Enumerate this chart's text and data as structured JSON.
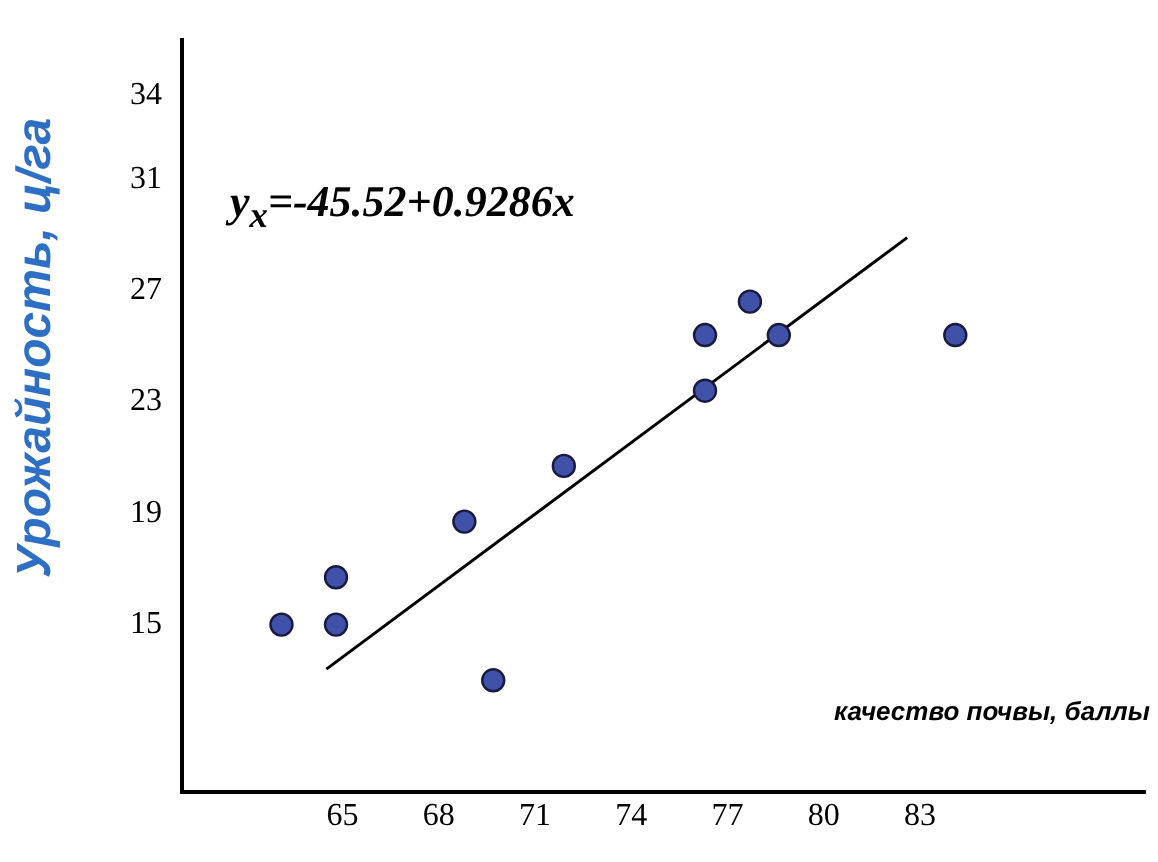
{
  "chart_data": {
    "type": "scatter",
    "xlabel": "качество почвы, баллы",
    "ylabel": "Урожайность, ц/га",
    "annotations": [
      "y$_{x}$=-45.52+0.9286x"
    ],
    "xlim": [
      60,
      90
    ],
    "ylim": [
      9,
      36
    ],
    "xticks": [
      65,
      68,
      71,
      74,
      77,
      80,
      83
    ],
    "yticks": [
      15,
      19,
      23,
      27,
      31,
      34
    ],
    "grid": false,
    "legend": false,
    "series": [
      {
        "marker": "circle",
        "color": "#3f51a8",
        "x": [
          63.1,
          64.8,
          64.8,
          68.8,
          69.7,
          71.9,
          76.3,
          76.3,
          77.7,
          78.6,
          84.1
        ],
        "values": [
          15,
          16.7,
          15,
          18.7,
          13,
          20.7,
          25.4,
          23.4,
          26.6,
          25.4,
          25.4
        ]
      },
      {
        "type": "line",
        "marker": "none",
        "color": "#000000",
        "x": [
          64.5,
          82.6
        ],
        "values": [
          13.4,
          28.9
        ]
      }
    ]
  }
}
